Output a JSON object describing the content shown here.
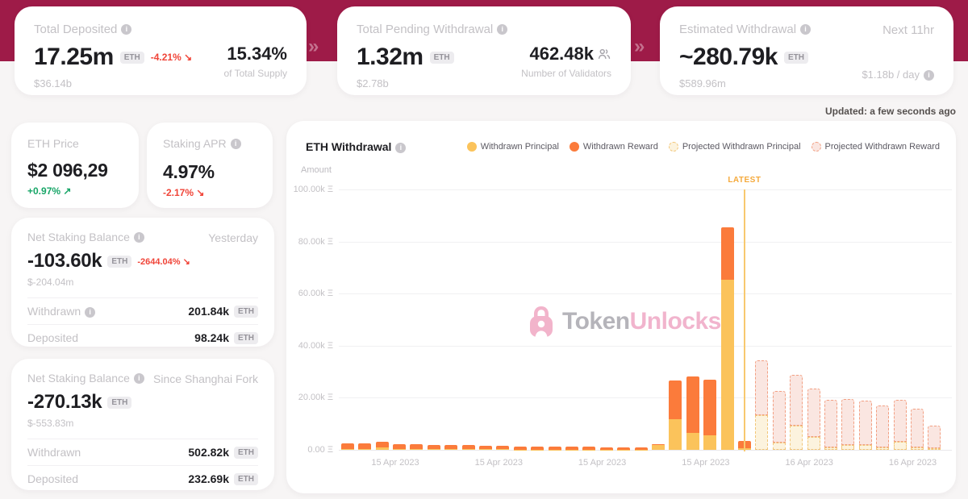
{
  "colors": {
    "maroon": "#9E1B48",
    "principal": "#FBC35B",
    "reward": "#FB7B3B",
    "projected_principal_fill": "#FCF3DE",
    "projected_principal_border": "#F2C679",
    "projected_reward_fill": "#FAE6E1",
    "projected_reward_border": "#F2A083",
    "latest": "#F5A93B",
    "latest_line": "#F8C96F",
    "negative_red": "#F04438",
    "positive_green": "#17A567"
  },
  "updated": "Updated: a few seconds ago",
  "top_cards": {
    "deposited": {
      "label": "Total Deposited",
      "value": "17.25m",
      "unit": "ETH",
      "change": "-4.21% ↘",
      "usd": "$36.14b",
      "right_value": "15.34%",
      "right_label": "of Total Supply"
    },
    "pending": {
      "label": "Total Pending Withdrawal",
      "value": "1.32m",
      "unit": "ETH",
      "usd": "$2.78b",
      "right_value": "462.48k",
      "right_label": "Number of Validators"
    },
    "estimated": {
      "label": "Estimated Withdrawal",
      "next": "Next 11hr",
      "value": "~280.79k",
      "unit": "ETH",
      "usd": "$589.96m",
      "day_rate": "$1.18b / day"
    }
  },
  "side_cards": {
    "eth_price": {
      "label": "ETH Price",
      "value": "$2 096,29",
      "change": "+0.97% ↗"
    },
    "staking_apr": {
      "label": "Staking APR",
      "value": "4.97%",
      "change": "-2.17% ↘"
    },
    "nsb_yesterday": {
      "label": "Net Staking Balance",
      "period": "Yesterday",
      "value": "-103.60k",
      "unit": "ETH",
      "change": "-2644.04% ↘",
      "usd": "$-204.04m",
      "rows": [
        {
          "label": "Withdrawn",
          "value": "201.84k",
          "unit": "ETH"
        },
        {
          "label": "Deposited",
          "value": "98.24k",
          "unit": "ETH"
        }
      ]
    },
    "nsb_shanghai": {
      "label": "Net Staking Balance",
      "period": "Since Shanghai Fork",
      "value": "-270.13k",
      "unit": "ETH",
      "usd": "$-553.83m",
      "rows": [
        {
          "label": "Withdrawn",
          "value": "502.82k",
          "unit": "ETH"
        },
        {
          "label": "Deposited",
          "value": "232.69k",
          "unit": "ETH"
        }
      ]
    }
  },
  "chart": {
    "title": "ETH Withdrawal",
    "amount_label": "Amount",
    "latest_label": "LATEST",
    "legend": [
      {
        "label": "Withdrawn Principal",
        "type": "principal"
      },
      {
        "label": "Withdrawn Reward",
        "type": "reward"
      },
      {
        "label": "Projected Withdrawn Principal",
        "type": "projected_principal"
      },
      {
        "label": "Projected Withdrawn Reward",
        "type": "projected_reward"
      }
    ],
    "watermark": {
      "part1": "Token",
      "part2": "Unlocks."
    }
  },
  "chart_data": {
    "type": "bar",
    "stacked": true,
    "unit": "k ETH",
    "ylim_k": [
      0,
      100
    ],
    "yticks": [
      "0.00 Ξ",
      "20.00k Ξ",
      "40.00k Ξ",
      "60.00k Ξ",
      "80.00k Ξ",
      "100.00k Ξ"
    ],
    "x_axis_labels": [
      "15 Apr 2023",
      "15 Apr 2023",
      "15 Apr 2023",
      "15 Apr 2023",
      "16 Apr 2023",
      "16 Apr 2023"
    ],
    "series_names": [
      "Withdrawn Principal (k ETH)",
      "Withdrawn Reward (k ETH)"
    ],
    "latest_index": 23,
    "bars": [
      {
        "principal": 0.3,
        "reward": 2.3,
        "projected": false
      },
      {
        "principal": 0.3,
        "reward": 2.1,
        "projected": false
      },
      {
        "principal": 0.9,
        "reward": 2.1,
        "projected": false
      },
      {
        "principal": 0.3,
        "reward": 2.0,
        "projected": false
      },
      {
        "principal": 0.3,
        "reward": 1.9,
        "projected": false
      },
      {
        "principal": 0.2,
        "reward": 1.8,
        "projected": false
      },
      {
        "principal": 0.2,
        "reward": 1.7,
        "projected": false
      },
      {
        "principal": 0.2,
        "reward": 1.6,
        "projected": false
      },
      {
        "principal": 0.2,
        "reward": 1.5,
        "projected": false
      },
      {
        "principal": 0.2,
        "reward": 1.4,
        "projected": false
      },
      {
        "principal": 0.1,
        "reward": 1.3,
        "projected": false
      },
      {
        "principal": 0.1,
        "reward": 1.2,
        "projected": false
      },
      {
        "principal": 0.1,
        "reward": 1.2,
        "projected": false
      },
      {
        "principal": 0.1,
        "reward": 1.1,
        "projected": false
      },
      {
        "principal": 0.1,
        "reward": 1.0,
        "projected": false
      },
      {
        "principal": 0.1,
        "reward": 0.9,
        "projected": false
      },
      {
        "principal": 0.1,
        "reward": 0.8,
        "projected": false
      },
      {
        "principal": 0.1,
        "reward": 0.7,
        "projected": false
      },
      {
        "principal": 1.8,
        "reward": 0.4,
        "projected": false
      },
      {
        "principal": 11.8,
        "reward": 14.9,
        "projected": false
      },
      {
        "principal": 6.5,
        "reward": 21.7,
        "projected": false
      },
      {
        "principal": 5.6,
        "reward": 21.4,
        "projected": false
      },
      {
        "principal": 65.4,
        "reward": 20.2,
        "projected": false
      },
      {
        "principal": 0.7,
        "reward": 2.7,
        "projected": false
      },
      {
        "principal": 13.3,
        "reward": 21.1,
        "projected": true
      },
      {
        "principal": 2.8,
        "reward": 19.8,
        "projected": true
      },
      {
        "principal": 9.3,
        "reward": 19.5,
        "projected": true
      },
      {
        "principal": 5.0,
        "reward": 18.5,
        "projected": true
      },
      {
        "principal": 1.0,
        "reward": 18.2,
        "projected": true
      },
      {
        "principal": 2.0,
        "reward": 17.5,
        "projected": true
      },
      {
        "principal": 2.0,
        "reward": 17.0,
        "projected": true
      },
      {
        "principal": 1.0,
        "reward": 16.0,
        "projected": true
      },
      {
        "principal": 3.0,
        "reward": 16.2,
        "projected": true
      },
      {
        "principal": 1.0,
        "reward": 14.8,
        "projected": true
      },
      {
        "principal": 0.5,
        "reward": 8.8,
        "projected": true
      }
    ]
  }
}
